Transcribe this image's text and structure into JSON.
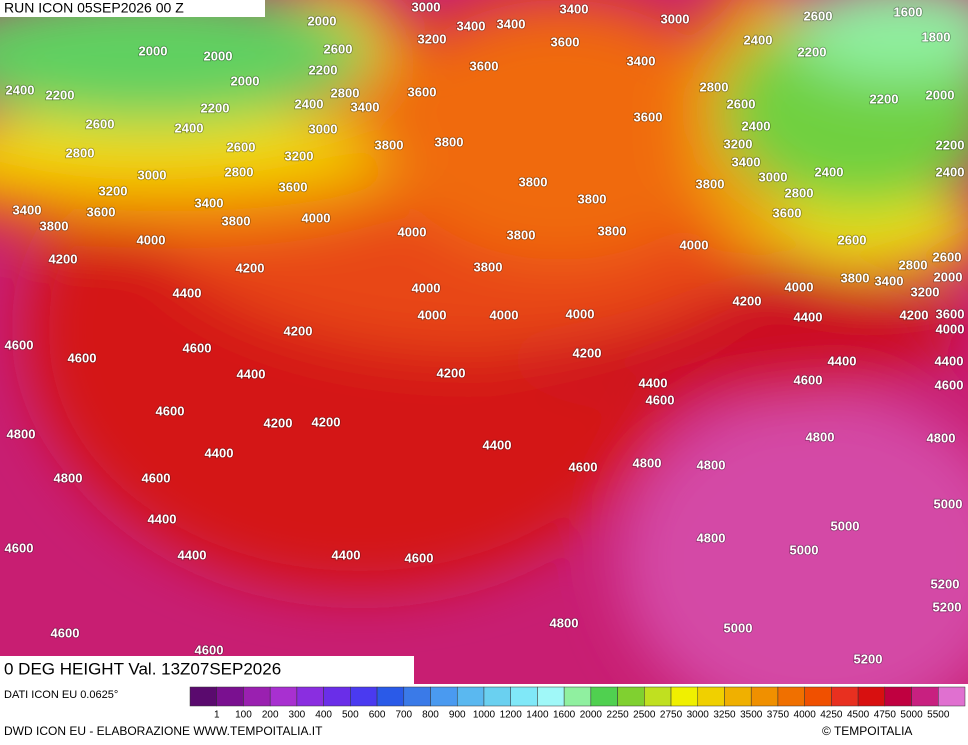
{
  "header": {
    "run": "RUN ICON 05SEP2026 00 Z"
  },
  "map": {
    "title": "0 DEG HEIGHT Val. 13Z07SEP2026",
    "contour_labels": [
      "2000",
      "3000",
      "3400",
      "3000",
      "2600",
      "1600",
      "3400",
      "3400",
      "3200",
      "3600",
      "2400",
      "2200",
      "1800",
      "2000",
      "2000",
      "2600",
      "2200",
      "3600",
      "3400",
      "2000",
      "2400",
      "2200",
      "2800",
      "3600",
      "2800",
      "2200",
      "2000",
      "2200",
      "2400",
      "3400",
      "2600",
      "2600",
      "2400",
      "3000",
      "3600",
      "2400",
      "2600",
      "3800",
      "3800",
      "3200",
      "2200",
      "2800",
      "3200",
      "3400",
      "2800",
      "3000",
      "3000",
      "2400",
      "2400",
      "3800",
      "3800",
      "3600",
      "2800",
      "3200",
      "3400",
      "3400",
      "3600",
      "3800",
      "3600",
      "4000",
      "3800",
      "3800",
      "4000",
      "3800",
      "3800",
      "4000",
      "4000",
      "2600",
      "2800",
      "2600",
      "4200",
      "4200",
      "3800",
      "3800",
      "3400",
      "3200",
      "2000",
      "4000",
      "4000",
      "4400",
      "4200",
      "4000",
      "4000",
      "4000",
      "4400",
      "4200",
      "3600",
      "4200",
      "4000",
      "4600",
      "4600",
      "4600",
      "4200",
      "4400",
      "4400",
      "4400",
      "4200",
      "4400",
      "4600",
      "4600",
      "4600",
      "4600",
      "4200",
      "4200",
      "4800",
      "4800",
      "4800",
      "4400",
      "4400",
      "4600",
      "4800",
      "4800",
      "4800",
      "4600",
      "5000",
      "4400",
      "5000",
      "4800",
      "4600",
      "4400",
      "4400",
      "4600",
      "5000",
      "5200",
      "5200",
      "4800",
      "5000",
      "4600",
      "4600",
      "5200"
    ]
  },
  "legend": {
    "source": "DATI ICON EU 0.0625°",
    "labels": [
      "1",
      "100",
      "200",
      "300",
      "400",
      "500",
      "600",
      "700",
      "800",
      "900",
      "1000",
      "1200",
      "1400",
      "1600",
      "2000",
      "2250",
      "2500",
      "2750",
      "3000",
      "3250",
      "3500",
      "3750",
      "4000",
      "4250",
      "4500",
      "4750",
      "5000",
      "5500"
    ],
    "colors": [
      "#5a0a6e",
      "#7a1090",
      "#9a20b0",
      "#a830d0",
      "#8a2ee0",
      "#6a2ee8",
      "#4a3af0",
      "#2a5ae8",
      "#3a7ae8",
      "#4a9af0",
      "#5ab8f0",
      "#6ad0f0",
      "#80e8f8",
      "#a0f8f8",
      "#90f0a0",
      "#50d050",
      "#80d030",
      "#c0e020",
      "#f0f000",
      "#f0d000",
      "#f0b000",
      "#f09000",
      "#f07000",
      "#f05000",
      "#e83020",
      "#d81010",
      "#c00040",
      "#c82080",
      "#e070d0"
    ]
  },
  "footer": {
    "credit": "DWD ICON EU - ELABORAZIONE WWW.TEMPOITALIA.IT",
    "copyright": "© TEMPOITALIA"
  }
}
